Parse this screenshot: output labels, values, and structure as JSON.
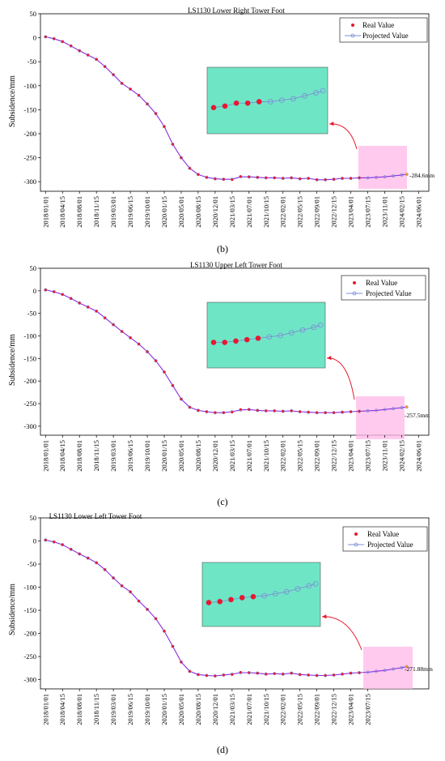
{
  "chart_data": [
    {
      "type": "scatter",
      "title": "LS1130 Lower Right Tower Foot",
      "caption": "(b)",
      "ylabel": "Subsidence/mm",
      "ylim": [
        -320,
        50
      ],
      "yticks": [
        50,
        0,
        -50,
        -100,
        -150,
        -200,
        -250,
        -300
      ],
      "xticks": [
        "2018/01/01",
        "2018/04/15",
        "2018/08/01",
        "2018/11/15",
        "2019/03/01",
        "2019/06/15",
        "2019/10/01",
        "2020/01/15",
        "2020/05/01",
        "2020/08/15",
        "2020/12/01",
        "2021/03/15",
        "2021/07/01",
        "2021/10/15",
        "2022/02/01",
        "2022/05/15",
        "2022/09/01",
        "2022/12/15",
        "2023/04/01",
        "2023/07/15",
        "2023/11/01",
        "2024/02/15",
        "2024/06/01"
      ],
      "xrange": [
        -0.3,
        22.6
      ],
      "series": [
        {
          "name": "Real Value",
          "color": "#e8192c",
          "x": [
            0,
            0.5,
            1,
            1.5,
            2,
            2.5,
            3,
            3.5,
            4,
            4.5,
            5,
            5.5,
            6,
            6.5,
            7,
            7.5,
            8,
            8.5,
            9,
            9.5,
            10,
            10.5,
            11,
            11.5,
            12,
            12.5,
            13,
            13.5,
            14,
            14.5,
            15,
            15.5,
            16,
            16.5,
            17,
            17.5,
            18,
            18.5
          ],
          "y": [
            2,
            -2,
            -8,
            -17,
            -27,
            -36,
            -45,
            -60,
            -77,
            -95,
            -107,
            -120,
            -138,
            -158,
            -185,
            -222,
            -250,
            -272,
            -285,
            -291,
            -294,
            -295,
            -296,
            -289,
            -290,
            -291,
            -292,
            -292,
            -293,
            -292,
            -294,
            -293,
            -296,
            -296,
            -295,
            -293,
            -293,
            -292
          ]
        },
        {
          "name": "Projected Value",
          "color": "#7d8ed4",
          "x": [
            0,
            0.5,
            1,
            1.5,
            2,
            2.5,
            3,
            3.5,
            4,
            4.5,
            5,
            5.5,
            6,
            6.5,
            7,
            7.5,
            8,
            8.5,
            9,
            9.5,
            10,
            10.5,
            11,
            11.5,
            12,
            12.5,
            13,
            13.5,
            14,
            14.5,
            15,
            15.5,
            16,
            16.5,
            17,
            17.5,
            18,
            18.5,
            19,
            19.5,
            20,
            20.5,
            21,
            21.3
          ],
          "y": [
            2,
            -2,
            -8,
            -17,
            -27,
            -36,
            -45,
            -60,
            -77,
            -95,
            -107,
            -120,
            -138,
            -158,
            -185,
            -222,
            -250,
            -272,
            -285,
            -291,
            -294,
            -295,
            -295,
            -290,
            -290,
            -291,
            -292,
            -292,
            -293,
            -292,
            -294,
            -293,
            -296,
            -296,
            -295,
            -293,
            -293,
            -292,
            -292,
            -291,
            -290,
            -288,
            -286,
            -284.6
          ]
        }
      ],
      "end_label": "-284.6mm",
      "end_value": -284.6,
      "highlight_x": [
        18.5,
        21.3
      ]
    },
    {
      "type": "scatter",
      "title": "LS1130 Upper Left Tower Foot",
      "caption": "(c)",
      "ylabel": "Subsidence/mm",
      "ylim": [
        -320,
        50
      ],
      "yticks": [
        50,
        0,
        -50,
        -100,
        -150,
        -200,
        -250,
        -300
      ],
      "xticks": [
        "2018/01/01",
        "2018/04/15",
        "2018/08/01",
        "2018/11/15",
        "2019/03/01",
        "2019/06/15",
        "2019/10/01",
        "2020/01/15",
        "2020/05/01",
        "2020/08/15",
        "2020/12/01",
        "2021/03/15",
        "2021/07/01",
        "2021/10/15",
        "2022/02/01",
        "2022/05/15",
        "2022/09/01",
        "2022/12/15",
        "2023/04/01",
        "2023/07/15",
        "2023/11/01",
        "2024/02/15",
        "2024/06/01"
      ],
      "xrange": [
        -0.3,
        22.6
      ],
      "series": [
        {
          "name": "Real Value",
          "color": "#e8192c",
          "x": [
            0,
            0.5,
            1,
            1.5,
            2,
            2.5,
            3,
            3.5,
            4,
            4.5,
            5,
            5.5,
            6,
            6.5,
            7,
            7.5,
            8,
            8.5,
            9,
            9.5,
            10,
            10.5,
            11,
            11.5,
            12,
            12.5,
            13,
            13.5,
            14,
            14.5,
            15,
            15.5,
            16,
            16.5,
            17,
            17.5,
            18,
            18.5
          ],
          "y": [
            2,
            -2,
            -8,
            -17,
            -27,
            -36,
            -45,
            -60,
            -75,
            -90,
            -104,
            -118,
            -135,
            -155,
            -180,
            -210,
            -240,
            -258,
            -265,
            -268,
            -270,
            -270,
            -269,
            -263,
            -263,
            -265,
            -266,
            -266,
            -267,
            -266,
            -268,
            -269,
            -270,
            -270,
            -270,
            -269,
            -268,
            -267
          ]
        },
        {
          "name": "Projected Value",
          "color": "#7d8ed4",
          "x": [
            0,
            0.5,
            1,
            1.5,
            2,
            2.5,
            3,
            3.5,
            4,
            4.5,
            5,
            5.5,
            6,
            6.5,
            7,
            7.5,
            8,
            8.5,
            9,
            9.5,
            10,
            10.5,
            11,
            11.5,
            12,
            12.5,
            13,
            13.5,
            14,
            14.5,
            15,
            15.5,
            16,
            16.5,
            17,
            17.5,
            18,
            18.5,
            19,
            19.5,
            20,
            20.5,
            21,
            21.3
          ],
          "y": [
            2,
            -2,
            -8,
            -17,
            -27,
            -36,
            -45,
            -60,
            -75,
            -90,
            -104,
            -118,
            -135,
            -155,
            -180,
            -210,
            -240,
            -258,
            -265,
            -268,
            -270,
            -270,
            -268,
            -264,
            -263,
            -265,
            -266,
            -266,
            -267,
            -266,
            -268,
            -269,
            -270,
            -270,
            -270,
            -269,
            -268,
            -267,
            -266,
            -265,
            -263,
            -261,
            -259,
            -257.5
          ]
        }
      ],
      "end_label": "-257.5mm",
      "end_value": -257.5,
      "highlight_x": [
        18.5,
        21.3
      ]
    },
    {
      "type": "scatter",
      "title": "LS1130 Lower Left Tower Foot",
      "caption": "(d)",
      "ylabel": "Subsidence/mm",
      "ylim": [
        -320,
        50
      ],
      "yticks": [
        50,
        0,
        -50,
        -100,
        -150,
        -200,
        -250,
        -300
      ],
      "xticks": [
        "2018/01/01",
        "2018/04/15",
        "2018/08/01",
        "2018/11/15",
        "2019/03/01",
        "2019/06/15",
        "2019/10/01",
        "2020/01/15",
        "2020/05/01",
        "2020/08/15",
        "2020/12/01",
        "2021/03/15",
        "2021/07/01",
        "2021/10/15",
        "2022/02/01",
        "2022/05/15",
        "2022/09/01",
        "2022/12/15",
        "2023/04/01",
        "2023/07/15"
      ],
      "xrange": [
        -0.3,
        22.6
      ],
      "series": [
        {
          "name": "Real Value",
          "color": "#e8192c",
          "x": [
            0,
            0.5,
            1,
            1.5,
            2,
            2.5,
            3,
            3.5,
            4,
            4.5,
            5,
            5.5,
            6,
            6.5,
            7,
            7.5,
            8,
            8.5,
            9,
            9.5,
            10,
            10.5,
            11,
            11.5,
            12,
            12.5,
            13,
            13.5,
            14,
            14.5,
            15,
            15.5,
            16,
            16.5,
            17,
            17.5,
            18,
            18.5
          ],
          "y": [
            2,
            -2,
            -8,
            -18,
            -28,
            -37,
            -47,
            -62,
            -80,
            -97,
            -110,
            -130,
            -148,
            -168,
            -195,
            -228,
            -262,
            -282,
            -289,
            -291,
            -292,
            -290,
            -289,
            -284,
            -285,
            -286,
            -288,
            -287,
            -288,
            -286,
            -289,
            -290,
            -291,
            -291,
            -290,
            -288,
            -286,
            -285
          ]
        },
        {
          "name": "Projected Value",
          "color": "#7d8ed4",
          "x": [
            0,
            0.5,
            1,
            1.5,
            2,
            2.5,
            3,
            3.5,
            4,
            4.5,
            5,
            5.5,
            6,
            6.5,
            7,
            7.5,
            8,
            8.5,
            9,
            9.5,
            10,
            10.5,
            11,
            11.5,
            12,
            12.5,
            13,
            13.5,
            14,
            14.5,
            15,
            15.5,
            16,
            16.5,
            17,
            17.5,
            18,
            18.5,
            19,
            19.5,
            20,
            20.5,
            21,
            21.3
          ],
          "y": [
            2,
            -2,
            -8,
            -18,
            -28,
            -37,
            -47,
            -62,
            -80,
            -97,
            -110,
            -130,
            -148,
            -168,
            -195,
            -228,
            -262,
            -282,
            -289,
            -291,
            -292,
            -290,
            -288,
            -285,
            -285,
            -286,
            -288,
            -287,
            -288,
            -286,
            -289,
            -290,
            -291,
            -291,
            -290,
            -288,
            -286,
            -285,
            -284,
            -282,
            -280,
            -277,
            -274,
            -271.88
          ]
        }
      ],
      "end_label": "-271.88mm",
      "end_value": -271.88,
      "highlight_x": [
        18.5,
        21.3
      ]
    }
  ],
  "legend": {
    "real_label": "Real Value",
    "projected_label": "Projected Value"
  },
  "colors": {
    "inset_fill": "#6ee6c6",
    "highlight_fill": "#ffb8e8",
    "curve": "#8a2be2",
    "arrow": "#e8192c"
  }
}
